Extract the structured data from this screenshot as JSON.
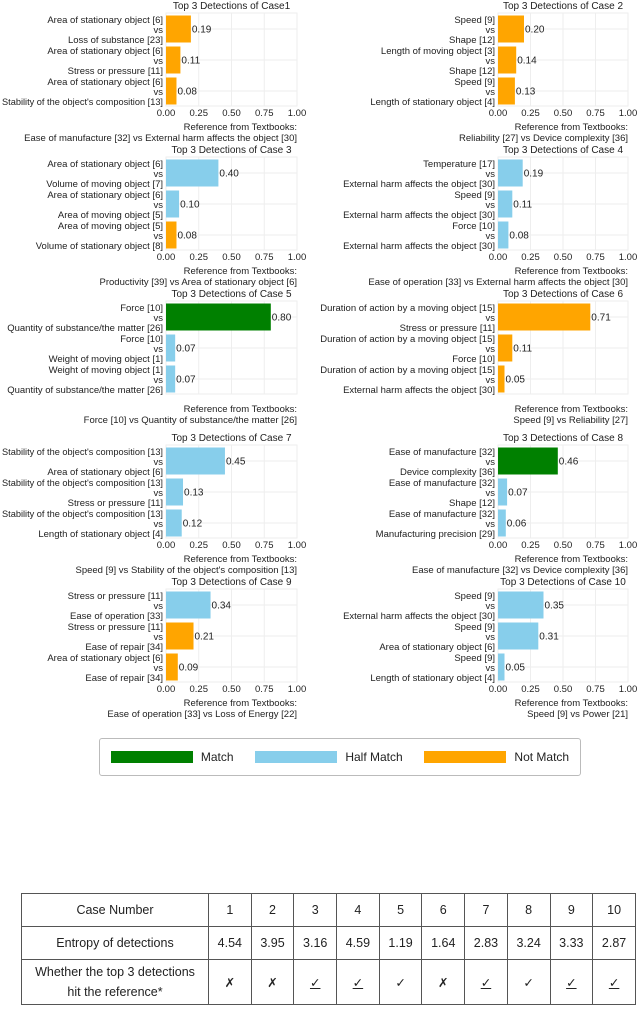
{
  "colors": {
    "Match": "#008000",
    "Half Match": "#87CEEB",
    "Not Match": "#FFA500"
  },
  "chart_data": [
    {
      "type": "bar",
      "orientation": "horizontal",
      "title": "Top 3 Detections of Case1",
      "xlim": [
        0,
        1
      ],
      "x_ticks": [
        "0.00",
        "0.25",
        "0.50",
        "0.75",
        "1.00"
      ],
      "x_ticks_shown": true,
      "grid": true,
      "bars": [
        {
          "a": "Area of stationary object [6]",
          "b": "Loss of substance [23]",
          "value": 0.19,
          "label": "0.19",
          "category": "Not Match"
        },
        {
          "a": "Area of stationary object [6]",
          "b": "Stress or pressure [11]",
          "value": 0.11,
          "label": "0.11",
          "category": "Not Match"
        },
        {
          "a": "Area of stationary object [6]",
          "b": "Stability of the object's composition [13]",
          "value": 0.08,
          "label": "0.08",
          "category": "Not Match"
        }
      ],
      "reference_title": "Reference from Textbooks:",
      "reference": "Ease of manufacture [32] vs External harm affects the object [30]"
    },
    {
      "type": "bar",
      "orientation": "horizontal",
      "title": "Top 3 Detections of Case 2",
      "xlim": [
        0,
        1
      ],
      "x_ticks": [
        "0.00",
        "0.25",
        "0.50",
        "0.75",
        "1.00"
      ],
      "x_ticks_shown": true,
      "grid": true,
      "bars": [
        {
          "a": "Speed [9]",
          "b": "Shape [12]",
          "value": 0.2,
          "label": "0.20",
          "category": "Not Match"
        },
        {
          "a": "Length of moving object [3]",
          "b": "Shape [12]",
          "value": 0.14,
          "label": "0.14",
          "category": "Not Match"
        },
        {
          "a": "Speed [9]",
          "b": "Length of stationary object [4]",
          "value": 0.13,
          "label": "0.13",
          "category": "Not Match"
        }
      ],
      "reference_title": "Reference from Textbooks:",
      "reference": "Reliability [27] vs Device complexity [36]"
    },
    {
      "type": "bar",
      "orientation": "horizontal",
      "title": "Top 3 Detections of Case 3",
      "xlim": [
        0,
        1
      ],
      "x_ticks": [
        "0.00",
        "0.25",
        "0.50",
        "0.75",
        "1.00"
      ],
      "x_ticks_shown": true,
      "grid": true,
      "bars": [
        {
          "a": "Area of stationary object [6]",
          "b": "Volume of moving object [7]",
          "value": 0.4,
          "label": "0.40",
          "category": "Half Match"
        },
        {
          "a": "Area of stationary object [6]",
          "b": "Area of moving object [5]",
          "value": 0.1,
          "label": "0.10",
          "category": "Half Match"
        },
        {
          "a": "Area of moving object [5]",
          "b": "Volume of stationary object [8]",
          "value": 0.08,
          "label": "0.08",
          "category": "Not Match"
        }
      ],
      "reference_title": "Reference from Textbooks:",
      "reference": "Productivity [39] vs Area of stationary object [6]"
    },
    {
      "type": "bar",
      "orientation": "horizontal",
      "title": "Top 3 Detections of Case 4",
      "xlim": [
        0,
        1
      ],
      "x_ticks": [
        "0.00",
        "0.25",
        "0.50",
        "0.75",
        "1.00"
      ],
      "x_ticks_shown": true,
      "grid": true,
      "bars": [
        {
          "a": "Temperature [17]",
          "b": "External harm affects the object [30]",
          "value": 0.19,
          "label": "0.19",
          "category": "Half Match"
        },
        {
          "a": "Speed [9]",
          "b": "External harm affects the object [30]",
          "value": 0.11,
          "label": "0.11",
          "category": "Half Match"
        },
        {
          "a": "Force [10]",
          "b": "External harm affects the object [30]",
          "value": 0.08,
          "label": "0.08",
          "category": "Half Match"
        }
      ],
      "reference_title": "Reference from Textbooks:",
      "reference": "Ease of operation [33] vs External harm affects the object [30]"
    },
    {
      "type": "bar",
      "orientation": "horizontal",
      "title": "Top 3 Detections of Case 5",
      "xlim": [
        0,
        1
      ],
      "x_ticks": [
        "0.00",
        "0.25",
        "0.50",
        "0.75",
        "1.00"
      ],
      "x_ticks_shown": false,
      "grid": true,
      "bars": [
        {
          "a": "Force [10]",
          "b": "Quantity of substance/the matter [26]",
          "value": 0.8,
          "label": "0.80",
          "category": "Match"
        },
        {
          "a": "Force [10]",
          "b": "Weight of moving object [1]",
          "value": 0.07,
          "label": "0.07",
          "category": "Half Match"
        },
        {
          "a": "Weight of moving object [1]",
          "b": "Quantity of substance/the matter [26]",
          "value": 0.07,
          "label": "0.07",
          "category": "Half Match"
        }
      ],
      "reference_title": "Reference from Textbooks:",
      "reference": "Force [10] vs Quantity of substance/the matter [26]"
    },
    {
      "type": "bar",
      "orientation": "horizontal",
      "title": "Top 3 Detections of Case 6",
      "xlim": [
        0,
        1
      ],
      "x_ticks": [
        "0.00",
        "0.25",
        "0.50",
        "0.75",
        "1.00"
      ],
      "x_ticks_shown": false,
      "grid": true,
      "bars": [
        {
          "a": "Duration of action by a moving object [15]",
          "b": "Stress or pressure [11]",
          "value": 0.71,
          "label": "0.71",
          "category": "Not Match"
        },
        {
          "a": "Duration of action by a moving object [15]",
          "b": "Force [10]",
          "value": 0.11,
          "label": "0.11",
          "category": "Not Match"
        },
        {
          "a": "Duration of action by a moving object [15]",
          "b": "External harm affects the object [30]",
          "value": 0.05,
          "label": "0.05",
          "category": "Not Match"
        }
      ],
      "reference_title": "Reference from Textbooks:",
      "reference": "Speed [9] vs Reliability [27]"
    },
    {
      "type": "bar",
      "orientation": "horizontal",
      "title": "Top 3 Detections of Case 7",
      "xlim": [
        0,
        1
      ],
      "x_ticks": [
        "0.00",
        "0.25",
        "0.50",
        "0.75",
        "1.00"
      ],
      "x_ticks_shown": true,
      "grid": true,
      "bars": [
        {
          "a": "Stability of the object's composition [13]",
          "b": "Area of stationary object [6]",
          "value": 0.45,
          "label": "0.45",
          "category": "Half Match"
        },
        {
          "a": "Stability of the object's composition [13]",
          "b": "Stress or pressure [11]",
          "value": 0.13,
          "label": "0.13",
          "category": "Half Match"
        },
        {
          "a": "Stability of the object's composition [13]",
          "b": "Length of stationary object [4]",
          "value": 0.12,
          "label": "0.12",
          "category": "Half Match"
        }
      ],
      "reference_title": "Reference from Textbooks:",
      "reference": "Speed [9] vs Stability of the object's composition [13]"
    },
    {
      "type": "bar",
      "orientation": "horizontal",
      "title": "Top 3 Detections of Case 8",
      "xlim": [
        0,
        1
      ],
      "x_ticks": [
        "0.00",
        "0.25",
        "0.50",
        "0.75",
        "1.00"
      ],
      "x_ticks_shown": true,
      "grid": true,
      "bars": [
        {
          "a": "Ease of manufacture [32]",
          "b": "Device complexity [36]",
          "value": 0.46,
          "label": "0.46",
          "category": "Match"
        },
        {
          "a": "Ease of manufacture [32]",
          "b": "Shape [12]",
          "value": 0.07,
          "label": "0.07",
          "category": "Half Match"
        },
        {
          "a": "Ease of manufacture [32]",
          "b": "Manufacturing precision [29]",
          "value": 0.06,
          "label": "0.06",
          "category": "Half Match"
        }
      ],
      "reference_title": "Reference from Textbooks:",
      "reference": "Ease of manufacture [32] vs Device complexity [36]"
    },
    {
      "type": "bar",
      "orientation": "horizontal",
      "title": "Top 3 Detections of Case 9",
      "xlim": [
        0,
        1
      ],
      "x_ticks": [
        "0.00",
        "0.25",
        "0.50",
        "0.75",
        "1.00"
      ],
      "x_ticks_shown": true,
      "grid": true,
      "bars": [
        {
          "a": "Stress or pressure [11]",
          "b": "Ease of operation [33]",
          "value": 0.34,
          "label": "0.34",
          "category": "Half Match"
        },
        {
          "a": "Stress or pressure [11]",
          "b": "Ease of repair [34]",
          "value": 0.21,
          "label": "0.21",
          "category": "Not Match"
        },
        {
          "a": "Area of stationary object [6]",
          "b": "Ease of repair [34]",
          "value": 0.09,
          "label": "0.09",
          "category": "Not Match"
        }
      ],
      "reference_title": "Reference from Textbooks:",
      "reference": "Ease of operation [33] vs Loss of Energy [22]"
    },
    {
      "type": "bar",
      "orientation": "horizontal",
      "title": "Top 3 Detections of Case 10",
      "xlim": [
        0,
        1
      ],
      "x_ticks": [
        "0.00",
        "0.25",
        "0.50",
        "0.75",
        "1.00"
      ],
      "x_ticks_shown": true,
      "grid": true,
      "bars": [
        {
          "a": "Speed [9]",
          "b": "External harm affects the object [30]",
          "value": 0.35,
          "label": "0.35",
          "category": "Half Match"
        },
        {
          "a": "Speed [9]",
          "b": "Area of stationary object [6]",
          "value": 0.31,
          "label": "0.31",
          "category": "Half Match"
        },
        {
          "a": "Speed [9]",
          "b": "Length of stationary object [4]",
          "value": 0.05,
          "label": "0.05",
          "category": "Half Match"
        }
      ],
      "reference_title": "Reference from Textbooks:",
      "reference": "Speed [9] vs Power [21]"
    }
  ],
  "vs_label": "vs",
  "legend": {
    "items": [
      "Match",
      "Half Match",
      "Not Match"
    ]
  },
  "table": {
    "row1_label": "Case Number",
    "cases": [
      "1",
      "2",
      "3",
      "4",
      "5",
      "6",
      "7",
      "8",
      "9",
      "10"
    ],
    "row2_label": "Entropy of detections",
    "entropy": [
      "4.54",
      "3.95",
      "3.16",
      "4.59",
      "1.19",
      "1.64",
      "2.83",
      "3.24",
      "3.33",
      "2.87"
    ],
    "row3_label_line1": "Whether the top 3 detections",
    "row3_label_line2": "hit the reference*",
    "hits": [
      {
        "mark": "✗",
        "underline": false
      },
      {
        "mark": "✗",
        "underline": false
      },
      {
        "mark": "✓",
        "underline": true
      },
      {
        "mark": "✓",
        "underline": true
      },
      {
        "mark": "✓",
        "underline": false
      },
      {
        "mark": "✗",
        "underline": false
      },
      {
        "mark": "✓",
        "underline": true
      },
      {
        "mark": "✓",
        "underline": false
      },
      {
        "mark": "✓",
        "underline": true
      },
      {
        "mark": "✓",
        "underline": true
      }
    ]
  }
}
